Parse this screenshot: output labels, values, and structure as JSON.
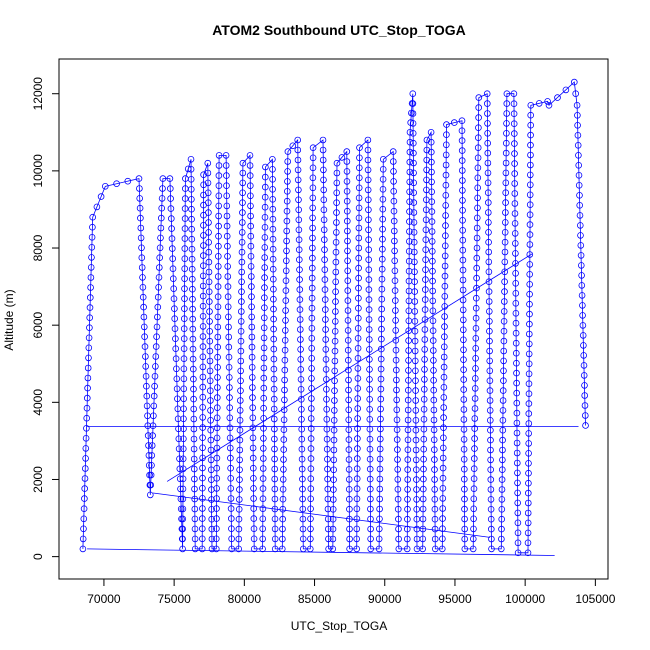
{
  "chart_data": {
    "type": "scatter",
    "title": "ATOM2 Southbound UTC_Stop_TOGA",
    "xlabel": "UTC_Stop_TOGA",
    "ylabel": "Altitude (m)",
    "xlim": [
      66800,
      105900
    ],
    "ylim": [
      -580,
      12900
    ],
    "xticks": [
      70000,
      75000,
      80000,
      85000,
      90000,
      95000,
      100000,
      105000
    ],
    "yticks": [
      0,
      2000,
      4000,
      6000,
      8000,
      10000,
      12000
    ],
    "grid": false,
    "legend": "none",
    "style": {
      "marker": "open-circle",
      "line": "connected",
      "color": "#0000ff"
    },
    "profile_keypoints": {
      "x": [
        68500,
        69200,
        70100,
        72500,
        73300,
        74200,
        74700,
        75600,
        75800,
        76200,
        76500,
        77000,
        77100,
        77400,
        77700,
        78000,
        78200,
        78700,
        79100,
        79600,
        79900,
        80400,
        80700,
        81300,
        81500,
        82000,
        82200,
        82700,
        83100,
        83800,
        84200,
        84700,
        84900,
        85600,
        86000,
        86300,
        86600,
        87300,
        87500,
        88000,
        88200,
        88800,
        89000,
        89600,
        89900,
        90600,
        91000,
        91600,
        91800,
        92000,
        92300,
        92700,
        93000,
        93300,
        93600,
        94100,
        94400,
        95500,
        95700,
        96300,
        96700,
        97300,
        97600,
        98300,
        98700,
        99200,
        99500,
        100200,
        100400,
        101600,
        101700,
        103500,
        103700,
        104300
      ],
      "y": [
        200,
        8800,
        9600,
        9800,
        1600,
        9800,
        9800,
        200,
        9800,
        10300,
        200,
        200,
        9900,
        10200,
        200,
        200,
        10400,
        10400,
        200,
        200,
        10200,
        10400,
        200,
        200,
        10100,
        10300,
        200,
        200,
        10500,
        10800,
        200,
        200,
        10600,
        10800,
        200,
        200,
        10200,
        10500,
        200,
        200,
        10600,
        10800,
        200,
        200,
        10300,
        10500,
        200,
        200,
        11000,
        12000,
        200,
        200,
        10800,
        11000,
        200,
        200,
        11200,
        11300,
        200,
        200,
        11900,
        12000,
        200,
        200,
        12000,
        12000,
        100,
        100,
        11700,
        11800,
        11700,
        12300,
        11700,
        3400
      ]
    },
    "annotation_lines": [
      {
        "x": [
          68800,
          102100
        ],
        "y": [
          200,
          30
        ]
      },
      {
        "x": [
          68800,
          103800
        ],
        "y": [
          3370,
          3370
        ]
      },
      {
        "x": [
          73500,
          97500
        ],
        "y": [
          1650,
          500
        ]
      },
      {
        "x": [
          74500,
          100500
        ],
        "y": [
          1950,
          7850
        ]
      }
    ]
  }
}
